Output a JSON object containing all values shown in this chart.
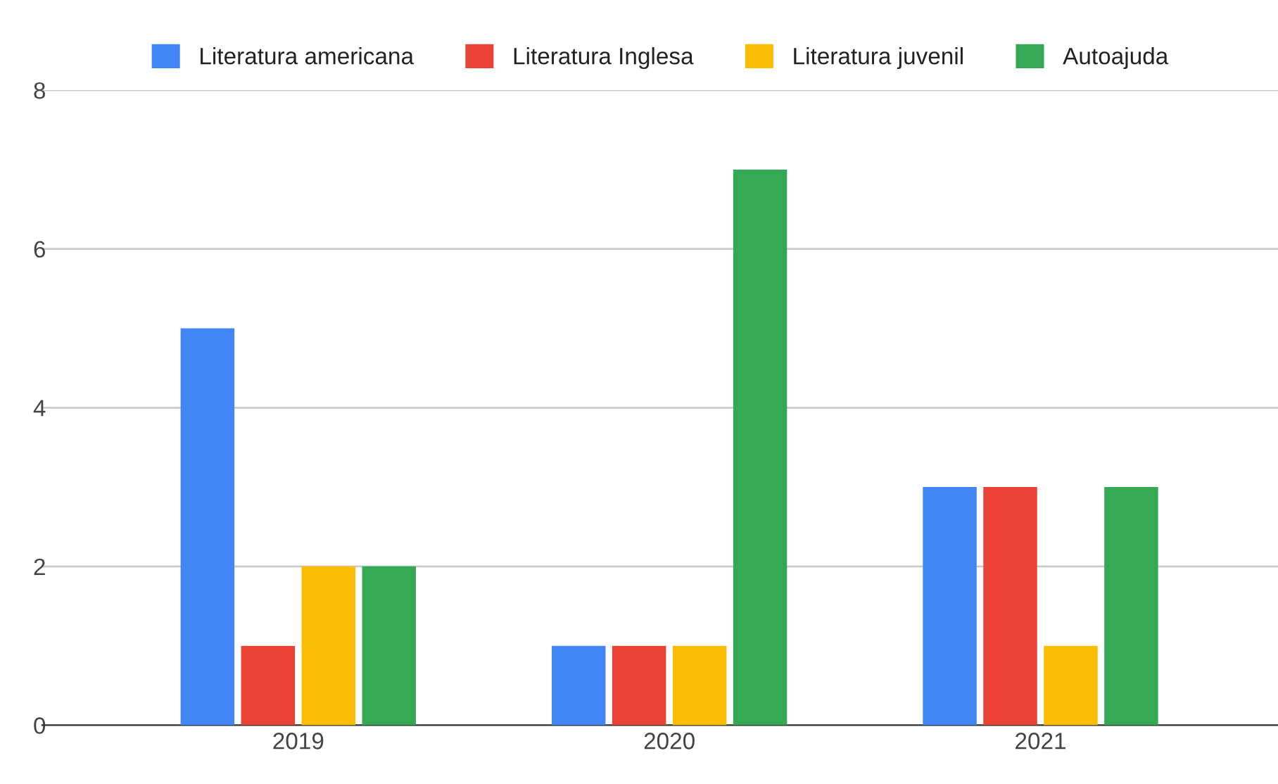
{
  "chart_data": {
    "type": "bar",
    "categories": [
      "2019",
      "2020",
      "2021"
    ],
    "series": [
      {
        "name": "Literatura americana",
        "color": "#4285f4",
        "values": [
          5,
          1,
          3
        ]
      },
      {
        "name": "Literatura Inglesa",
        "color": "#ea4335",
        "values": [
          1,
          1,
          3
        ]
      },
      {
        "name": "Literatura juvenil",
        "color": "#fbbc04",
        "values": [
          2,
          1,
          1
        ]
      },
      {
        "name": "Autoajuda",
        "color": "#34a853",
        "values": [
          2,
          7,
          3
        ]
      }
    ],
    "ylim": [
      0,
      8
    ],
    "yticks": [
      0,
      2,
      4,
      6,
      8
    ],
    "grid": "y",
    "legend": "top"
  }
}
